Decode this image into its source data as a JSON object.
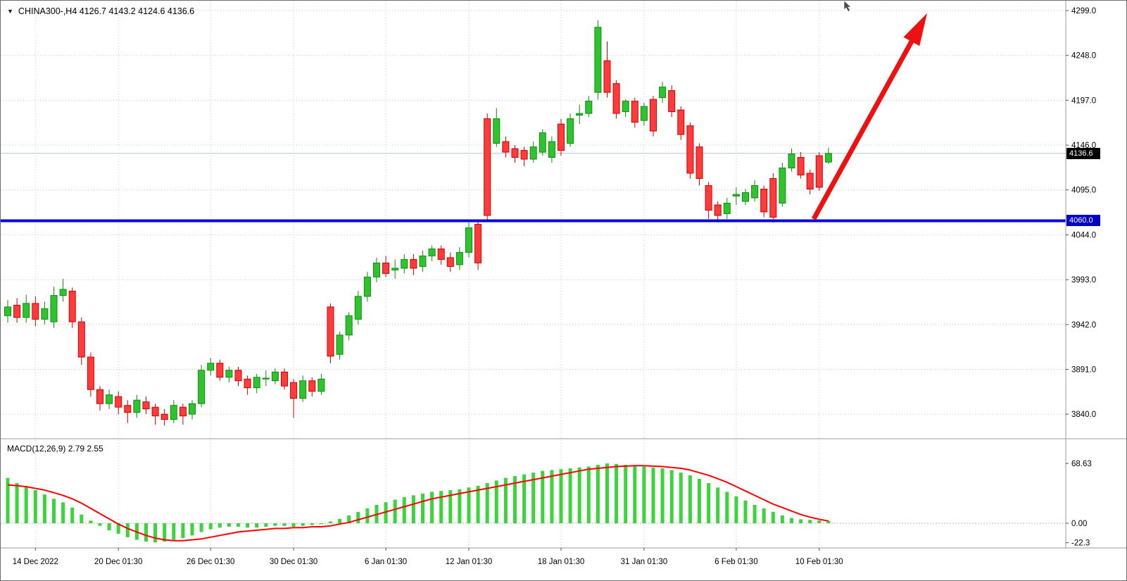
{
  "header": {
    "menu_icon": "▼",
    "title": "CHINA300-,H4  4126.7 4143.2 4124.6 4136.6"
  },
  "macd_label": "MACD(12,26,9) 2.79 2.55",
  "price_tags": {
    "current": "4136.6",
    "level": "4060.0"
  },
  "colors": {
    "up": "#2fc42f",
    "up_border": "#0d8f0d",
    "down": "#ff3c3c",
    "down_border": "#cf0000",
    "grid": "#c6c6c6",
    "level_line": "#0000e0",
    "arrow": "#ee1111",
    "signal": "#ff0000",
    "hist": "#3bd43b",
    "axis_text": "#000000",
    "current_price_line": "#bcc4d0",
    "separator": "#9a9a9a",
    "tick": "#555555"
  },
  "chart_data": {
    "type": "candlestick",
    "title": "CHINA300-,H4",
    "symbol": "CHINA300-",
    "timeframe": "H4",
    "ohlc_readout": {
      "open": 4126.7,
      "high": 4143.2,
      "low": 4124.6,
      "close": 4136.6
    },
    "current_price": 4136.6,
    "support_level": 4060.0,
    "grid": true,
    "price_ticks": [
      "4299.0",
      "4248.0",
      "4197.0",
      "4146.0",
      "4095.0",
      "4044.0",
      "3993.0",
      "3942.0",
      "3891.0",
      "3840.0"
    ],
    "time_labels": [
      {
        "index": 3,
        "text": "14 Dec 2022"
      },
      {
        "index": 12,
        "text": "20 Dec 01:30"
      },
      {
        "index": 22,
        "text": "26 Dec 01:30"
      },
      {
        "index": 31,
        "text": "30 Dec 01:30"
      },
      {
        "index": 41,
        "text": "6 Jan 01:30"
      },
      {
        "index": 50,
        "text": "12 Jan 01:30"
      },
      {
        "index": 60,
        "text": "18 Jan 01:30"
      },
      {
        "index": 69,
        "text": "31 Jan 01:30"
      },
      {
        "index": 79,
        "text": "6 Feb 01:30"
      },
      {
        "index": 88,
        "text": "10 Feb 01:30"
      }
    ],
    "candles": [
      [
        3952,
        3970,
        3944,
        3962
      ],
      [
        3964,
        3972,
        3944,
        3950
      ],
      [
        3950,
        3976,
        3944,
        3966
      ],
      [
        3966,
        3974,
        3940,
        3948
      ],
      [
        3948,
        3968,
        3942,
        3960
      ],
      [
        3945,
        3985,
        3938,
        3975
      ],
      [
        3975,
        3994,
        3968,
        3982
      ],
      [
        3980,
        3984,
        3938,
        3945
      ],
      [
        3945,
        3950,
        3896,
        3905
      ],
      [
        3905,
        3910,
        3860,
        3868
      ],
      [
        3868,
        3872,
        3844,
        3852
      ],
      [
        3852,
        3868,
        3846,
        3862
      ],
      [
        3860,
        3866,
        3840,
        3848
      ],
      [
        3850,
        3856,
        3830,
        3842
      ],
      [
        3842,
        3862,
        3836,
        3856
      ],
      [
        3854,
        3860,
        3840,
        3846
      ],
      [
        3848,
        3852,
        3828,
        3838
      ],
      [
        3840,
        3846,
        3827,
        3834
      ],
      [
        3834,
        3856,
        3830,
        3850
      ],
      [
        3848,
        3852,
        3828,
        3838
      ],
      [
        3840,
        3856,
        3834,
        3852
      ],
      [
        3852,
        3896,
        3848,
        3890
      ],
      [
        3890,
        3904,
        3884,
        3898
      ],
      [
        3898,
        3902,
        3878,
        3882
      ],
      [
        3882,
        3894,
        3876,
        3890
      ],
      [
        3890,
        3894,
        3872,
        3878
      ],
      [
        3880,
        3884,
        3862,
        3870
      ],
      [
        3870,
        3886,
        3864,
        3882
      ],
      [
        3880,
        3890,
        3872,
        3881
      ],
      [
        3878,
        3892,
        3874,
        3888
      ],
      [
        3888,
        3892,
        3868,
        3872
      ],
      [
        3876,
        3880,
        3836,
        3858
      ],
      [
        3858,
        3884,
        3854,
        3878
      ],
      [
        3878,
        3882,
        3860,
        3866
      ],
      [
        3866,
        3886,
        3862,
        3880
      ],
      [
        3962,
        3966,
        3898,
        3906
      ],
      [
        3908,
        3934,
        3902,
        3930
      ],
      [
        3930,
        3956,
        3924,
        3952
      ],
      [
        3948,
        3980,
        3942,
        3974
      ],
      [
        3974,
        4002,
        3968,
        3996
      ],
      [
        3996,
        4018,
        3990,
        4012
      ],
      [
        4012,
        4020,
        3996,
        4000
      ],
      [
        4004,
        4016,
        3994,
        4006
      ],
      [
        4006,
        4022,
        4000,
        4016
      ],
      [
        4016,
        4022,
        3998,
        4006
      ],
      [
        4008,
        4026,
        4002,
        4020
      ],
      [
        4020,
        4032,
        4014,
        4028
      ],
      [
        4028,
        4032,
        4010,
        4016
      ],
      [
        4018,
        4024,
        4002,
        4008
      ],
      [
        4010,
        4030,
        4004,
        4024
      ],
      [
        4024,
        4058,
        4018,
        4052
      ],
      [
        4056,
        4060,
        4004,
        4012
      ],
      [
        4176,
        4182,
        4060,
        4066
      ],
      [
        4148,
        4188,
        4144,
        4176
      ],
      [
        4150,
        4156,
        4132,
        4138
      ],
      [
        4142,
        4146,
        4126,
        4132
      ],
      [
        4140,
        4144,
        4122,
        4130
      ],
      [
        4130,
        4150,
        4126,
        4144
      ],
      [
        4138,
        4164,
        4134,
        4160
      ],
      [
        4132,
        4156,
        4126,
        4150
      ],
      [
        4170,
        4176,
        4134,
        4140
      ],
      [
        4148,
        4182,
        4144,
        4176
      ],
      [
        4180,
        4192,
        4170,
        4182
      ],
      [
        4182,
        4202,
        4178,
        4196
      ],
      [
        4206,
        4288,
        4198,
        4280
      ],
      [
        4242,
        4264,
        4200,
        4206
      ],
      [
        4216,
        4220,
        4176,
        4182
      ],
      [
        4184,
        4198,
        4178,
        4196
      ],
      [
        4196,
        4200,
        4166,
        4172
      ],
      [
        4174,
        4194,
        4168,
        4190
      ],
      [
        4198,
        4202,
        4156,
        4162
      ],
      [
        4200,
        4218,
        4194,
        4212
      ],
      [
        4208,
        4214,
        4178,
        4184
      ],
      [
        4186,
        4190,
        4152,
        4158
      ],
      [
        4168,
        4172,
        4108,
        4114
      ],
      [
        4144,
        4148,
        4100,
        4108
      ],
      [
        4100,
        4104,
        4062,
        4072
      ],
      [
        4078,
        4082,
        4058,
        4066
      ],
      [
        4068,
        4086,
        4062,
        4080
      ],
      [
        4088,
        4098,
        4078,
        4090
      ],
      [
        4082,
        4096,
        4078,
        4092
      ],
      [
        4086,
        4106,
        4082,
        4100
      ],
      [
        4096,
        4100,
        4064,
        4070
      ],
      [
        4108,
        4114,
        4058,
        4064
      ],
      [
        4080,
        4126,
        4076,
        4120
      ],
      [
        4120,
        4142,
        4116,
        4136
      ],
      [
        4132,
        4138,
        4108,
        4112
      ],
      [
        4114,
        4118,
        4090,
        4096
      ],
      [
        4134,
        4138,
        4094,
        4098
      ],
      [
        4126.7,
        4143.2,
        4124.6,
        4136.6
      ]
    ],
    "macd": {
      "label": "MACD(12,26,9)",
      "readout": [
        2.79,
        2.55
      ],
      "ticks": [
        {
          "value": 68.63,
          "label": "68.63"
        },
        {
          "value": 0,
          "label": "0.00"
        },
        {
          "value": -22.3,
          "label": "-22.3"
        }
      ],
      "histogram": [
        52,
        46,
        42,
        38,
        33,
        28,
        24,
        18,
        10,
        3,
        -3,
        -8,
        -12,
        -16,
        -19,
        -21,
        -22,
        -21,
        -19,
        -17,
        -14,
        -10,
        -7,
        -5,
        -4,
        -4,
        -5,
        -5,
        -4,
        -3,
        -3,
        -4,
        -3,
        -2,
        -1,
        2,
        5,
        9,
        13,
        17,
        21,
        24,
        27,
        30,
        32,
        34,
        36,
        37,
        38,
        39,
        41,
        43,
        46,
        49,
        52,
        54,
        56,
        58,
        60,
        61,
        62,
        63,
        64,
        65,
        67,
        68.6,
        68,
        67,
        66,
        65,
        64,
        63,
        61,
        58,
        55,
        51,
        46,
        41,
        36,
        31,
        26,
        21,
        17,
        13,
        9,
        6,
        4.5,
        3.8,
        3.2,
        2.79
      ],
      "signal": [
        44,
        43,
        42,
        40,
        38,
        35,
        32,
        28,
        23,
        17,
        11,
        5,
        -1,
        -6,
        -10,
        -14,
        -17,
        -19,
        -20,
        -20,
        -19,
        -18,
        -16,
        -14,
        -12,
        -10,
        -9,
        -8,
        -7,
        -6,
        -6,
        -5,
        -5,
        -4,
        -4,
        -3,
        -1,
        1,
        4,
        7,
        10,
        13,
        16,
        19,
        22,
        25,
        28,
        30,
        32,
        34,
        36,
        38,
        40,
        42,
        44,
        46,
        48,
        50,
        52,
        54,
        56,
        58,
        60,
        62,
        63,
        64,
        65,
        65.5,
        66,
        66,
        65.5,
        65,
        64,
        63,
        61,
        58,
        55,
        51,
        47,
        42,
        37,
        32,
        27,
        22,
        18,
        14,
        10,
        7,
        4.5,
        2.55
      ]
    },
    "annotation_arrow": {
      "from_index": 87.4,
      "from_price": 4062,
      "to_index": 99.7,
      "to_price": 4296
    }
  }
}
